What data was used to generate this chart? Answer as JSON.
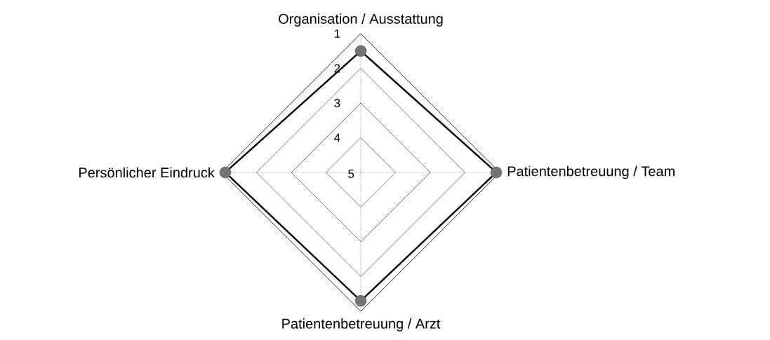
{
  "chart_data": {
    "type": "radar",
    "categories": [
      "Organisation / Ausstattung",
      "Patientenbetreuung / Team",
      "Patientenbetreuung / Arzt",
      "Persönlicher Eindruck"
    ],
    "series": [
      {
        "color": "#000000",
        "values": [
          1.5,
          1.1,
          1.3,
          1.1
        ]
      }
    ],
    "ylim": [
      5,
      1
    ],
    "yticks": [
      1,
      2,
      3,
      4,
      5
    ],
    "grid": true,
    "marker": "circle",
    "line_style": "solid"
  }
}
